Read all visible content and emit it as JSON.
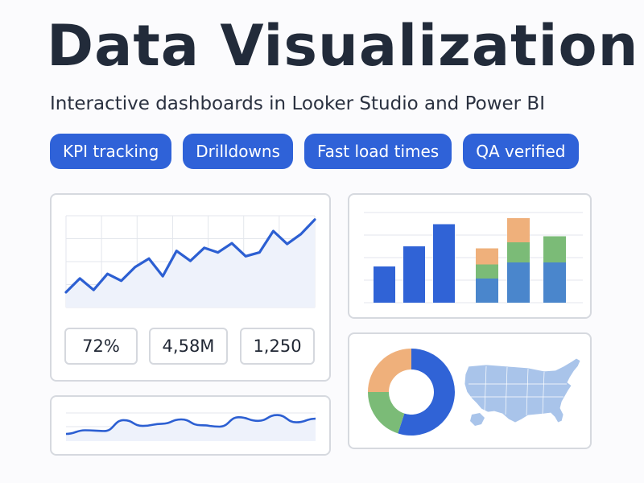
{
  "header": {
    "title": "Data Visualization",
    "subtitle": "Interactive dashboards in Looker Studio and Power BI"
  },
  "tags": [
    "KPI tracking",
    "Drilldowns",
    "Fast load times",
    "QA verified"
  ],
  "kpis": [
    "72%",
    "4,58M",
    "1,250"
  ],
  "colors": {
    "primary": "#2f62d8",
    "line": "#2c5fd2",
    "bar_dark": "#3063d6",
    "stack_blue": "#4a86cc",
    "stack_green": "#7bbb77",
    "stack_orange": "#efb07b",
    "map": "#a9c4ea"
  },
  "chart_data": [
    {
      "type": "area",
      "values": [
        2,
        3.8,
        2.3,
        4.4,
        3.5,
        5.3,
        6.4,
        4.1,
        7.4,
        6.1,
        7.8,
        7.2,
        8.4,
        6.7,
        7.2,
        10,
        8.3,
        9.6,
        11.5
      ]
    },
    {
      "type": "bar",
      "values": [
        1.8,
        2.8,
        3.9
      ]
    },
    {
      "type": "bar",
      "stacked": true,
      "values_blue": [
        1.2,
        2.0,
        2.0
      ],
      "values_green": [
        0.7,
        1.0,
        1.3
      ],
      "values_orange": [
        0.8,
        1.2,
        0
      ]
    },
    {
      "type": "line",
      "values": [
        0.5,
        0.75,
        0.7,
        1.45,
        1.05,
        1.2,
        1.5,
        1.1,
        1.0,
        1.65,
        1.4,
        1.8,
        1.3,
        1.55
      ]
    },
    {
      "type": "pie",
      "values": [
        55,
        20,
        25
      ]
    }
  ]
}
